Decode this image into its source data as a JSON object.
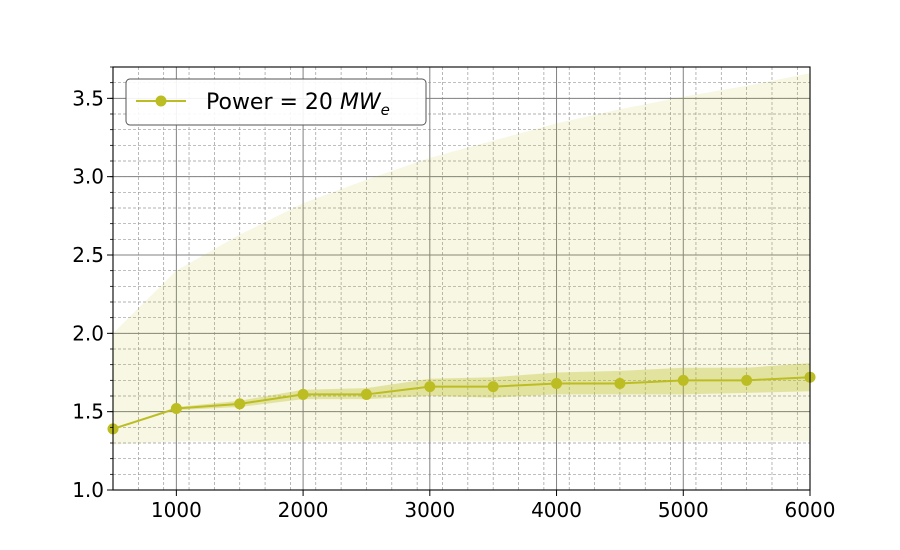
{
  "chart_data": {
    "type": "line",
    "title": "",
    "xlabel": "",
    "ylabel": "",
    "xlim": [
      500,
      6000
    ],
    "ylim": [
      1.0,
      3.7
    ],
    "x_major_ticks": [
      1000,
      2000,
      3000,
      4000,
      5000,
      6000
    ],
    "x_minor_step": 200,
    "y_major_ticks": [
      1.0,
      1.5,
      2.0,
      2.5,
      3.0,
      3.5
    ],
    "y_minor_step": 0.1,
    "grid": true,
    "legend": {
      "position": "top-left",
      "label_main": "Power = 20 ",
      "label_italic": "MW",
      "label_sub": "e"
    },
    "series": [
      {
        "name": "Power = 20 MWe",
        "color": "#bcbd22",
        "marker": "circle",
        "x": [
          500,
          1000,
          1500,
          2000,
          2500,
          3000,
          3500,
          4000,
          4500,
          5000,
          5500,
          6000
        ],
        "y": [
          1.39,
          1.52,
          1.55,
          1.61,
          1.61,
          1.66,
          1.66,
          1.68,
          1.68,
          1.7,
          1.7,
          1.72
        ],
        "inner_band": {
          "x": [
            1000,
            1500,
            2000,
            2500,
            3000,
            3500,
            4000,
            4500,
            5000,
            5500,
            6000
          ],
          "lower": [
            1.51,
            1.53,
            1.58,
            1.58,
            1.6,
            1.59,
            1.61,
            1.61,
            1.61,
            1.62,
            1.63
          ],
          "upper": [
            1.53,
            1.57,
            1.64,
            1.65,
            1.71,
            1.72,
            1.75,
            1.76,
            1.78,
            1.78,
            1.81
          ]
        },
        "outer_band": {
          "x": [
            500,
            1000,
            1500,
            2000,
            2500,
            3000,
            3500,
            4000,
            4500,
            5000,
            5500,
            6000
          ],
          "lower": [
            1.29,
            1.31,
            1.31,
            1.31,
            1.31,
            1.31,
            1.31,
            1.31,
            1.31,
            1.31,
            1.31,
            1.31
          ],
          "upper": [
            2.0,
            2.4,
            2.63,
            2.83,
            2.98,
            3.12,
            3.23,
            3.34,
            3.43,
            3.51,
            3.58,
            3.66
          ]
        }
      }
    ]
  }
}
